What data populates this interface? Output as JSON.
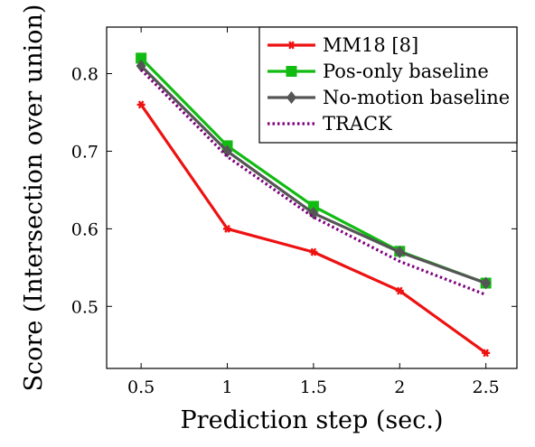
{
  "chart_data": {
    "type": "line",
    "xlabel": "Prediction step (sec.)",
    "ylabel": "Score (Intersection over union)",
    "x": [
      0.5,
      1,
      1.5,
      2,
      2.5
    ],
    "x_tick_labels": [
      "0.5",
      "1",
      "1.5",
      "2",
      "2.5"
    ],
    "y_ticks": [
      0.5,
      0.6,
      0.7,
      0.8
    ],
    "y_tick_labels": [
      "0.5",
      "0.6",
      "0.7",
      "0.8"
    ],
    "xlim": [
      0.3,
      2.68
    ],
    "ylim": [
      0.42,
      0.86
    ],
    "grid": false,
    "legend_position": "top-right",
    "series": [
      {
        "name": "MM18 [8]",
        "values": [
          0.76,
          0.6,
          0.57,
          0.52,
          0.44
        ],
        "color": "#ee1111",
        "marker": "star",
        "dash": "solid"
      },
      {
        "name": "Pos-only baseline",
        "values": [
          0.82,
          0.707,
          0.629,
          0.571,
          0.53
        ],
        "color": "#11bb11",
        "marker": "square",
        "dash": "solid"
      },
      {
        "name": "No-motion baseline",
        "values": [
          0.81,
          0.7,
          0.62,
          0.57,
          0.53
        ],
        "color": "#555555",
        "marker": "diamond",
        "dash": "solid"
      },
      {
        "name": "TRACK",
        "values": [
          0.805,
          0.693,
          0.615,
          0.558,
          0.515
        ],
        "color": "#7f007f",
        "marker": "none",
        "dash": "dotted"
      }
    ]
  }
}
